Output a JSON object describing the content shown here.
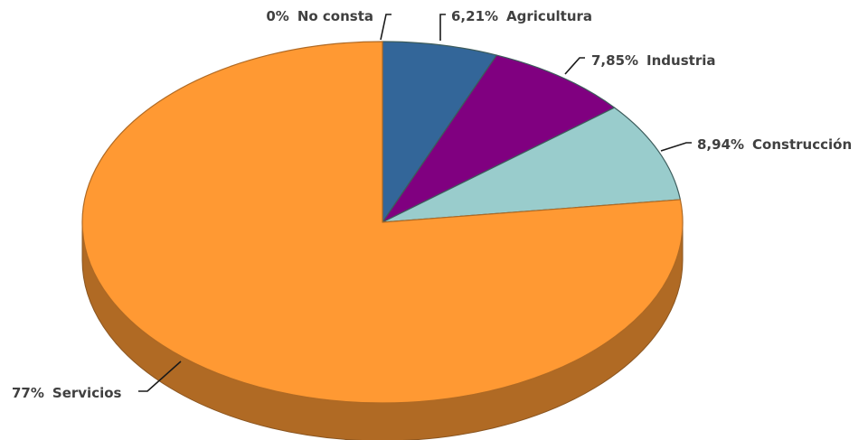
{
  "chart_data": {
    "type": "pie",
    "style": "3d-pie",
    "slices": [
      {
        "category": "No consta",
        "value": 0,
        "value_label": "0%",
        "color": "#FFFFFF",
        "side_color": "#FFFFFF"
      },
      {
        "category": "Agricultura",
        "value": 6.21,
        "value_label": "6,21%",
        "color": "#336699",
        "side_color": "#264d73"
      },
      {
        "category": "Industria",
        "value": 7.85,
        "value_label": "7,85%",
        "color": "#800080",
        "side_color": "#5c005c"
      },
      {
        "category": "Construcción",
        "value": 8.94,
        "value_label": "8,94%",
        "color": "#99CCCC",
        "side_color": "#739999"
      },
      {
        "category": "Servicios",
        "value": 77,
        "value_label": "77%",
        "color": "#FF9933",
        "side_color": "#B06A24"
      }
    ],
    "units": "%",
    "legend": "none"
  }
}
